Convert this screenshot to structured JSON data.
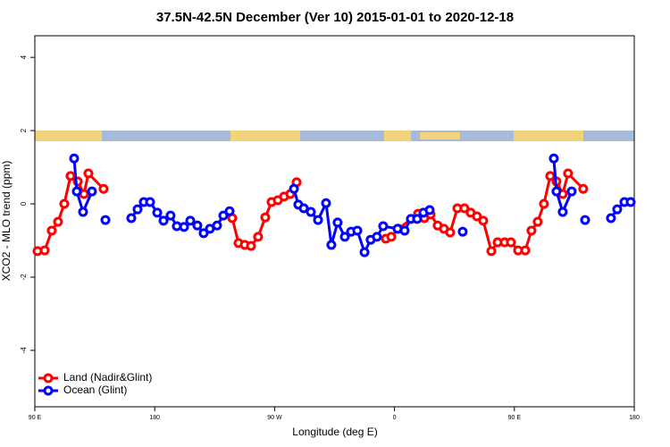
{
  "chart_data": {
    "type": "line",
    "title": "37.5N-42.5N December (Ver 10)   2015-01-01 to 2020-12-18",
    "x_label": "Longitude (deg E)",
    "y_label": "XCO2 - MLO trend (ppm)",
    "xlim": [
      90,
      540
    ],
    "xticks": [
      {
        "value": 90,
        "label": "90 E"
      },
      {
        "value": 180,
        "label": "180"
      },
      {
        "value": 270,
        "label": "90 W"
      },
      {
        "value": 360,
        "label": "0"
      },
      {
        "value": 450,
        "label": "90 E"
      },
      {
        "value": 540,
        "label": "180"
      }
    ],
    "ylim": [
      -5.54,
      4.59
    ],
    "yticks": [
      -4,
      -2,
      0,
      2,
      4
    ],
    "legend": "bottom-left",
    "series": [
      {
        "name": "Land (Nadir&Glint)",
        "color": "#ff0000",
        "x": [
          92.0,
          97.4,
          102.7,
          107.4,
          112.1,
          116.8,
          122.2,
          126.9,
          130.2,
          141.6,
          null,
          238.2,
          242.9,
          247.6,
          252.3,
          257.6,
          263.0,
          267.7,
          272.4,
          277.1,
          281.8,
          286.5,
          null,
          353.5,
          357.6,
          362.9,
          377.7,
          382.4,
          387.1,
          392.4,
          397.1,
          401.8,
          407.2,
          412.5,
          417.2,
          421.9,
          426.6,
          432.7,
          437.4,
          442.7,
          447.4,
          452.8,
          458.2,
          462.8,
          467.5,
          472.2,
          476.9,
          481.6,
          486.3,
          490.3,
          501.7
        ],
        "values": [
          -1.29,
          -1.27,
          -0.73,
          -0.49,
          0,
          0.76,
          0.61,
          0.27,
          0.83,
          0.41,
          null,
          -0.39,
          -1.07,
          -1.12,
          -1.15,
          -0.9,
          -0.37,
          0.05,
          0.1,
          0.2,
          0.27,
          0.59,
          null,
          -0.95,
          -0.9,
          -0.68,
          -0.27,
          -0.39,
          -0.29,
          -0.59,
          -0.68,
          -0.78,
          -0.12,
          -0.12,
          -0.24,
          -0.34,
          -0.46,
          -1.29,
          -1.05,
          -1.05,
          -1.05,
          -1.27,
          -1.27,
          -0.73,
          -0.49,
          0,
          0.76,
          0.61,
          0.27,
          0.83,
          0.41
        ]
      },
      {
        "name": "Ocean (Glint)",
        "color": "#0000ff",
        "x": [
          119.5,
          121.5,
          126.2,
          132.9,
          null,
          143.0,
          null,
          162.4,
          167.1,
          171.8,
          176.5,
          181.9,
          186.6,
          191.9,
          196.6,
          202.0,
          206.7,
          212.0,
          216.7,
          221.4,
          226.8,
          231.5,
          236.2,
          null,
          284.5,
          287.8,
          291.9,
          297.2,
          302.6,
          308.6,
          312.6,
          317.3,
          322.7,
          327.4,
          332.1,
          337.5,
          342.1,
          346.8,
          351.5,
          362.3,
          367.6,
          372.3,
          377.0,
          381.7,
          386.4,
          null,
          411.2,
          null,
          479.6,
          481.6,
          486.3,
          493.0,
          null,
          503.1,
          null,
          522.5,
          527.2,
          532.6,
          537.3
        ],
        "values": [
          1.24,
          0.34,
          -0.22,
          0.34,
          null,
          -0.44,
          null,
          -0.39,
          -0.15,
          0.05,
          0.05,
          -0.24,
          -0.46,
          -0.32,
          -0.61,
          -0.63,
          -0.46,
          -0.59,
          -0.8,
          -0.68,
          -0.59,
          -0.32,
          -0.2,
          null,
          0.41,
          -0.02,
          -0.12,
          -0.22,
          -0.44,
          0.02,
          -1.12,
          -0.51,
          -0.9,
          -0.76,
          -0.73,
          -1.32,
          -0.98,
          -0.9,
          -0.61,
          -0.68,
          -0.73,
          -0.41,
          -0.41,
          -0.24,
          -0.17,
          null,
          -0.76,
          null,
          1.24,
          0.34,
          -0.22,
          0.34,
          null,
          -0.44,
          null,
          -0.39,
          -0.15,
          0.05,
          0.05
        ]
      }
    ]
  }
}
